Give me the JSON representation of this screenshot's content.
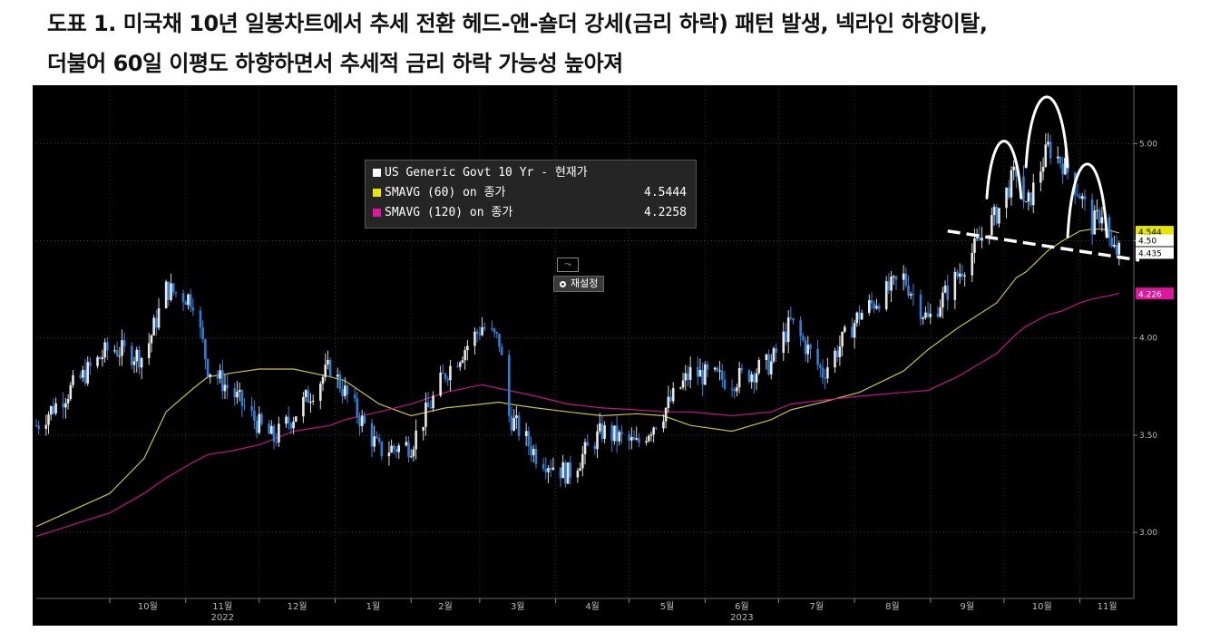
{
  "title": {
    "line1": "도표 1. 미국채 10년 일봉차트에서 추세 전환 헤드-앤-숄더 강세(금리 하락) 패턴 발생, 넥라인 하향이탈,",
    "line2": "더불어 60일 이평도 하향하면서 추세적 금리 하락 가능성 높아져"
  },
  "legend": {
    "items": [
      {
        "label": "US Generic Govt 10 Yr - 현재가",
        "value": "",
        "color": "#ffffff"
      },
      {
        "label": "SMAVG (60)  on 종가",
        "value": "4.5444",
        "color": "#e6e600"
      },
      {
        "label": "SMAVG (120)  on 종가",
        "value": "4.2258",
        "color": "#e0169a"
      }
    ]
  },
  "reset_label": "재설정",
  "colors": {
    "price": "#2f7fd6",
    "sma60": "#c8c23a",
    "sma120": "#c0158a",
    "background": "#000000"
  },
  "chart_data": {
    "type": "line",
    "x_ticks": [
      "10월",
      "11월",
      "12월",
      "1월",
      "2월",
      "3월",
      "4월",
      "5월",
      "6월",
      "7월",
      "8월",
      "9월",
      "10월",
      "11월"
    ],
    "year_labels": [
      {
        "label": "2022",
        "at_tick": 1
      },
      {
        "label": "2023",
        "at_tick": 8
      }
    ],
    "y_ticks": [
      3.0,
      3.5,
      4.0,
      4.5,
      5.0
    ],
    "y_tick_labels": [
      "3.00",
      "3.50",
      "4.00",
      "4.50",
      "5.00"
    ],
    "ylim": [
      2.66,
      5.3
    ],
    "x_dates": [
      "2022-09-01",
      "2022-10-01",
      "2022-10-15",
      "2022-10-24",
      "2022-11-04",
      "2022-11-10",
      "2022-11-20",
      "2022-12-01",
      "2022-12-07",
      "2022-12-15",
      "2022-12-30",
      "2023-01-05",
      "2023-01-19",
      "2023-02-01",
      "2023-02-15",
      "2023-03-02",
      "2023-03-09",
      "2023-03-13",
      "2023-03-24",
      "2023-04-06",
      "2023-04-20",
      "2023-05-04",
      "2023-05-15",
      "2023-05-26",
      "2023-06-12",
      "2023-06-28",
      "2023-07-06",
      "2023-07-19",
      "2023-08-03",
      "2023-08-21",
      "2023-08-31",
      "2023-09-12",
      "2023-09-28",
      "2023-10-06",
      "2023-10-10",
      "2023-10-19",
      "2023-10-25",
      "2023-11-01",
      "2023-11-06",
      "2023-11-10",
      "2023-11-14",
      "2023-11-17"
    ],
    "series": [
      {
        "values": [
          3.55,
          3.95,
          3.9,
          4.25,
          4.2,
          3.85,
          3.72,
          3.55,
          3.48,
          3.6,
          3.85,
          3.72,
          3.42,
          3.45,
          3.82,
          4.06,
          3.98,
          3.6,
          3.4,
          3.3,
          3.52,
          3.45,
          3.62,
          3.82,
          3.78,
          3.87,
          4.08,
          3.82,
          4.12,
          4.31,
          4.09,
          4.32,
          4.64,
          4.86,
          4.66,
          4.98,
          4.9,
          4.74,
          4.58,
          4.65,
          4.45,
          4.44
        ]
      },
      {
        "values": [
          3.03,
          3.2,
          3.38,
          3.62,
          3.74,
          3.8,
          3.82,
          3.84,
          3.84,
          3.84,
          3.8,
          3.78,
          3.66,
          3.6,
          3.64,
          3.66,
          3.67,
          3.66,
          3.64,
          3.62,
          3.6,
          3.61,
          3.6,
          3.55,
          3.52,
          3.58,
          3.63,
          3.67,
          3.72,
          3.83,
          3.94,
          4.05,
          4.18,
          4.31,
          4.34,
          4.45,
          4.5,
          4.55,
          4.56,
          4.56,
          4.55,
          4.54
        ]
      },
      {
        "values": [
          2.98,
          3.1,
          3.2,
          3.28,
          3.36,
          3.4,
          3.42,
          3.45,
          3.48,
          3.52,
          3.55,
          3.58,
          3.62,
          3.66,
          3.72,
          3.76,
          3.74,
          3.73,
          3.7,
          3.66,
          3.64,
          3.63,
          3.62,
          3.62,
          3.6,
          3.62,
          3.66,
          3.68,
          3.7,
          3.72,
          3.73,
          3.8,
          3.92,
          4.02,
          4.06,
          4.12,
          4.14,
          4.18,
          4.2,
          4.21,
          4.22,
          4.23
        ]
      }
    ],
    "value_tags": [
      {
        "label": "4.544",
        "value": 4.544,
        "color": "#e6e600"
      },
      {
        "label": "4.50",
        "value": 4.5,
        "color": "#ffffff"
      },
      {
        "label": "4.435",
        "value": 4.435,
        "color": "#ffffff"
      },
      {
        "label": "4.226",
        "value": 4.226,
        "color": "#e0169a"
      }
    ]
  }
}
